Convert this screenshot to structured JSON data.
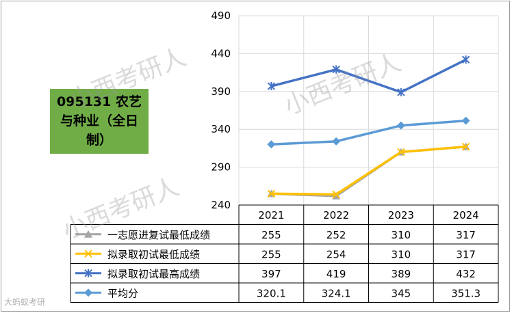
{
  "title_box": {
    "text": "095131 农艺与种业（全日制）"
  },
  "watermarks": [
    "小西考研人",
    "小西考研人",
    "小西考研人"
  ],
  "corner_logo": "大蚂蚁考研",
  "chart_data": {
    "type": "line",
    "categories": [
      "2021",
      "2022",
      "2023",
      "2024"
    ],
    "ylim": [
      240,
      490
    ],
    "yticks": [
      240,
      290,
      340,
      390,
      440,
      490
    ],
    "grid": true,
    "legend": "table-below",
    "series": [
      {
        "name": "一志愿进复试最低成绩",
        "values": [
          255,
          252,
          310,
          317
        ],
        "value_labels": [
          "255",
          "252",
          "310",
          "317"
        ],
        "color": "#a5a5a5",
        "marker": "triangle"
      },
      {
        "name": "拟录取初试最低成绩",
        "values": [
          255,
          254,
          310,
          317
        ],
        "value_labels": [
          "255",
          "254",
          "310",
          "317"
        ],
        "color": "#ffc000",
        "marker": "x"
      },
      {
        "name": "拟录取初试最高成绩",
        "values": [
          397,
          419,
          389,
          432
        ],
        "value_labels": [
          "397",
          "419",
          "389",
          "432"
        ],
        "color": "#4472c4",
        "marker": "star"
      },
      {
        "name": "平均分",
        "values": [
          320.1,
          324.1,
          345,
          351.3
        ],
        "value_labels": [
          "320.1",
          "324.1",
          "345",
          "351.3"
        ],
        "color": "#5b9bd5",
        "marker": "diamond"
      }
    ]
  }
}
